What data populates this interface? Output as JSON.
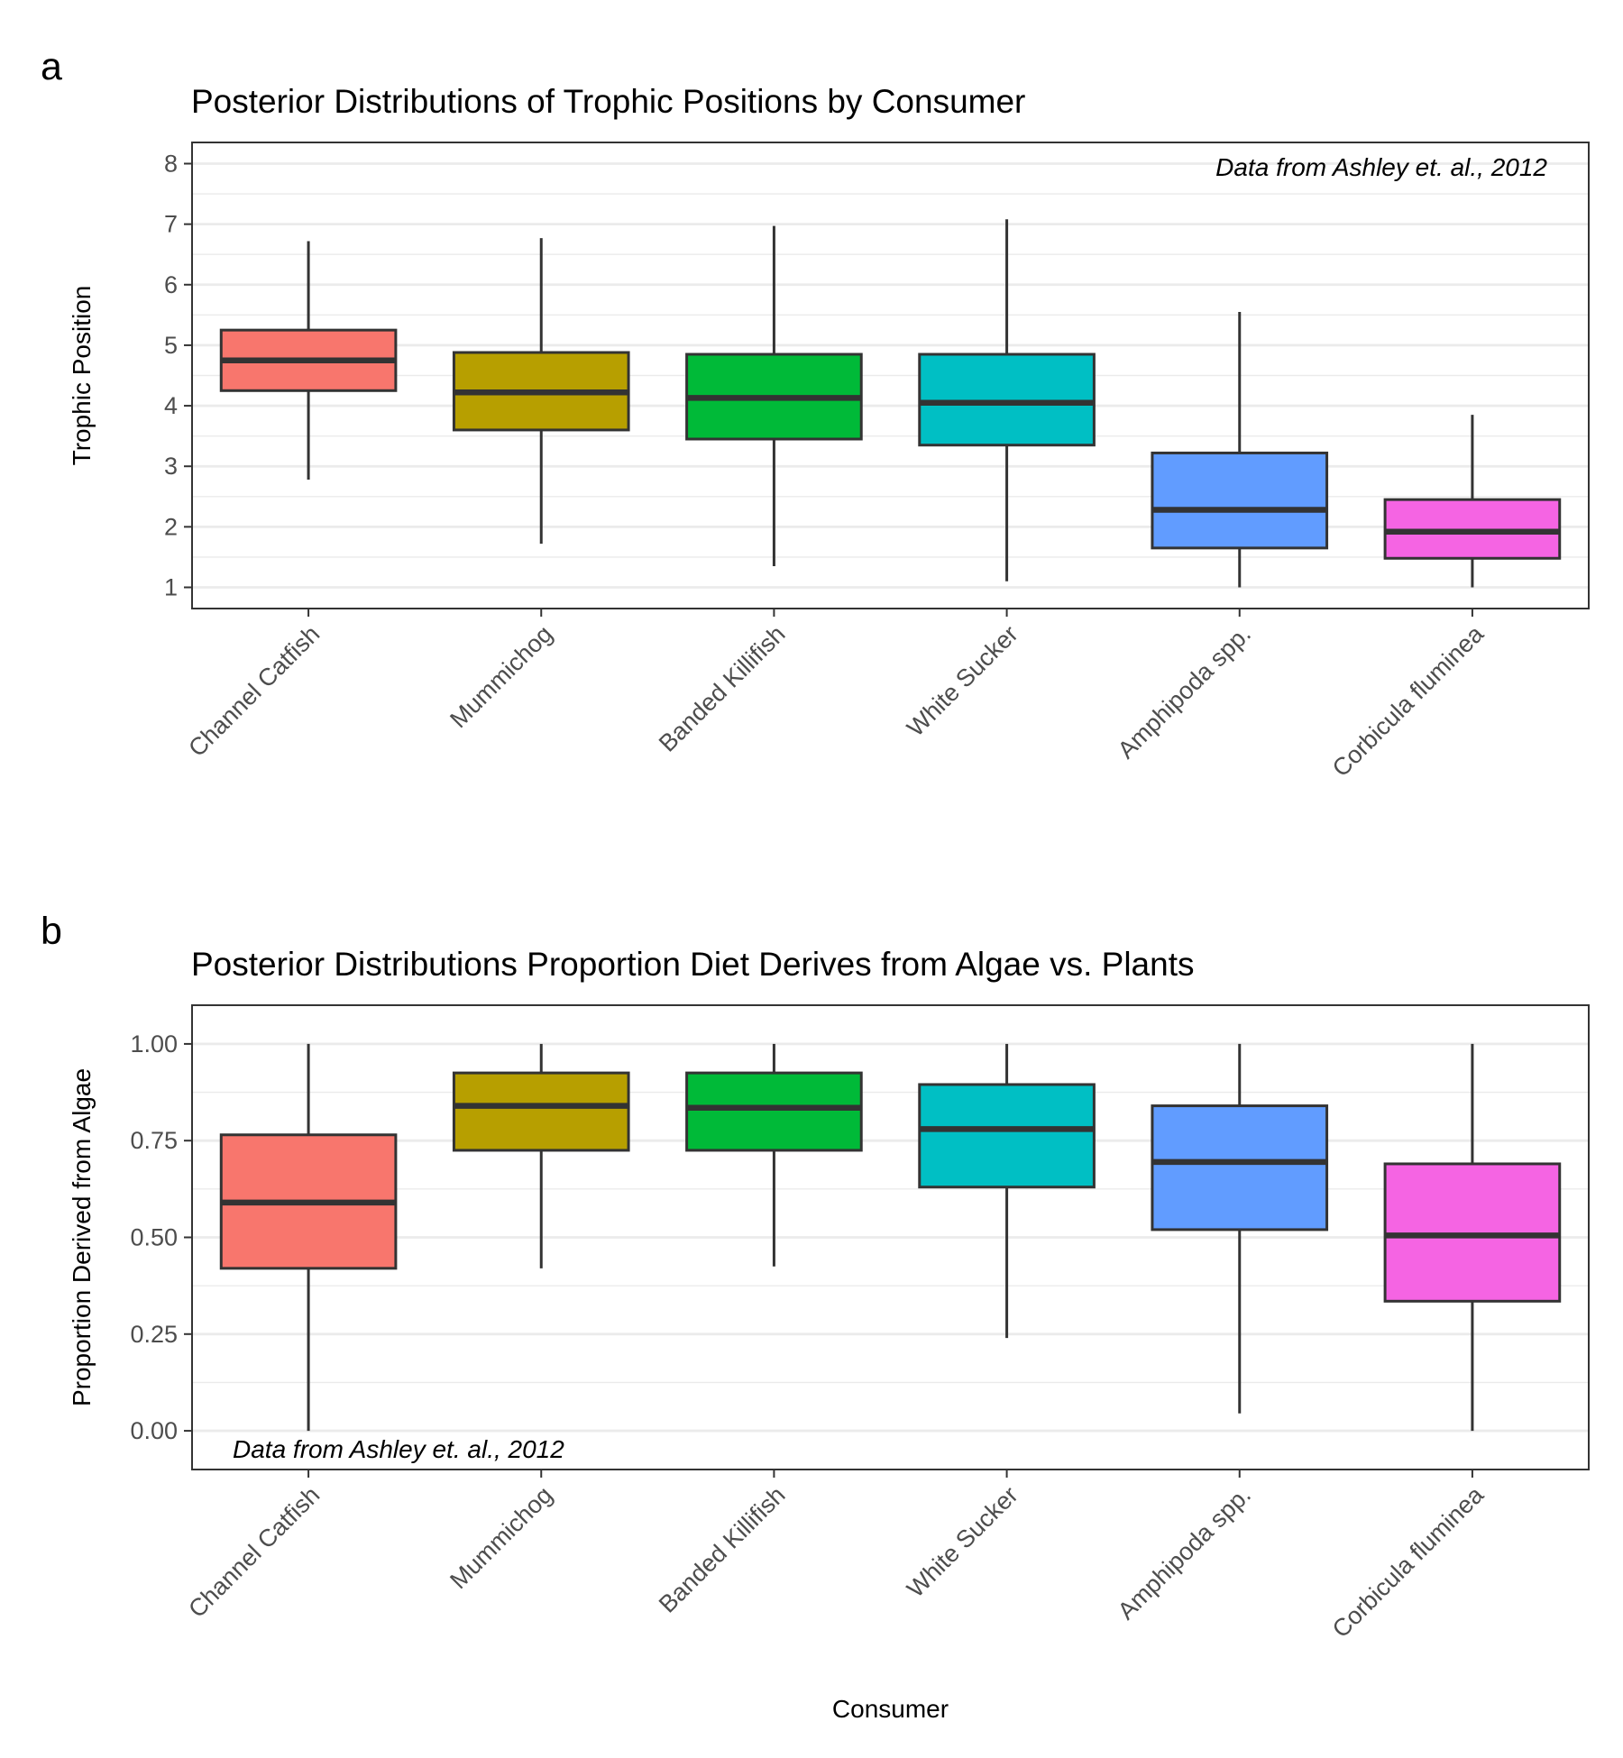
{
  "chart_data": [
    {
      "panel": "a",
      "type": "boxplot",
      "title": "Posterior Distributions of Trophic Positions by Consumer",
      "xlabel": "",
      "ylabel": "Trophic Position",
      "annotation": "Data from Ashley et. al., 2012",
      "annotation_position": "top-right",
      "ylim": [
        0.65,
        8.35
      ],
      "yticks": [
        1,
        2,
        3,
        4,
        5,
        6,
        7,
        8
      ],
      "ytick_labels": [
        "1",
        "2",
        "3",
        "4",
        "5",
        "6",
        "7",
        "8"
      ],
      "grid": true,
      "categories": [
        "Channel Catfish",
        "Mummichog",
        "Banded Killifish",
        "White Sucker",
        "Amphipoda spp.",
        "Corbicula fluminea"
      ],
      "colors": [
        "#F8766D",
        "#B79F00",
        "#00BA38",
        "#00BFC4",
        "#619CFF",
        "#F564E3"
      ],
      "boxes": [
        {
          "whisker_low": 2.78,
          "q1": 4.25,
          "median": 4.75,
          "q3": 5.25,
          "whisker_high": 6.72
        },
        {
          "whisker_low": 1.72,
          "q1": 3.6,
          "median": 4.22,
          "q3": 4.88,
          "whisker_high": 6.77
        },
        {
          "whisker_low": 1.35,
          "q1": 3.45,
          "median": 4.13,
          "q3": 4.85,
          "whisker_high": 6.97
        },
        {
          "whisker_low": 1.1,
          "q1": 3.35,
          "median": 4.05,
          "q3": 4.85,
          "whisker_high": 7.08
        },
        {
          "whisker_low": 1.0,
          "q1": 1.65,
          "median": 2.28,
          "q3": 3.22,
          "whisker_high": 5.55
        },
        {
          "whisker_low": 1.0,
          "q1": 1.48,
          "median": 1.92,
          "q3": 2.45,
          "whisker_high": 3.85
        }
      ]
    },
    {
      "panel": "b",
      "type": "boxplot",
      "title": "Posterior Distributions Proportion Diet Derives from Algae vs. Plants",
      "xlabel": "Consumer",
      "ylabel": "Proportion Derived from Algae",
      "annotation": "Data from Ashley et. al., 2012",
      "annotation_position": "bottom-left",
      "ylim": [
        -0.1,
        1.1
      ],
      "yticks": [
        0,
        0.25,
        0.5,
        0.75,
        1
      ],
      "ytick_labels": [
        "0.00",
        "0.25",
        "0.50",
        "0.75",
        "1.00"
      ],
      "grid": true,
      "categories": [
        "Channel Catfish",
        "Mummichog",
        "Banded Killifish",
        "White Sucker",
        "Amphipoda spp.",
        "Corbicula fluminea"
      ],
      "colors": [
        "#F8766D",
        "#B79F00",
        "#00BA38",
        "#00BFC4",
        "#619CFF",
        "#F564E3"
      ],
      "boxes": [
        {
          "whisker_low": 0.0,
          "q1": 0.42,
          "median": 0.59,
          "q3": 0.765,
          "whisker_high": 1.0
        },
        {
          "whisker_low": 0.42,
          "q1": 0.725,
          "median": 0.84,
          "q3": 0.925,
          "whisker_high": 1.0
        },
        {
          "whisker_low": 0.425,
          "q1": 0.725,
          "median": 0.835,
          "q3": 0.925,
          "whisker_high": 1.0
        },
        {
          "whisker_low": 0.24,
          "q1": 0.63,
          "median": 0.78,
          "q3": 0.895,
          "whisker_high": 1.0
        },
        {
          "whisker_low": 0.045,
          "q1": 0.52,
          "median": 0.695,
          "q3": 0.84,
          "whisker_high": 1.0
        },
        {
          "whisker_low": 0.0,
          "q1": 0.335,
          "median": 0.505,
          "q3": 0.69,
          "whisker_high": 1.0
        }
      ]
    }
  ]
}
